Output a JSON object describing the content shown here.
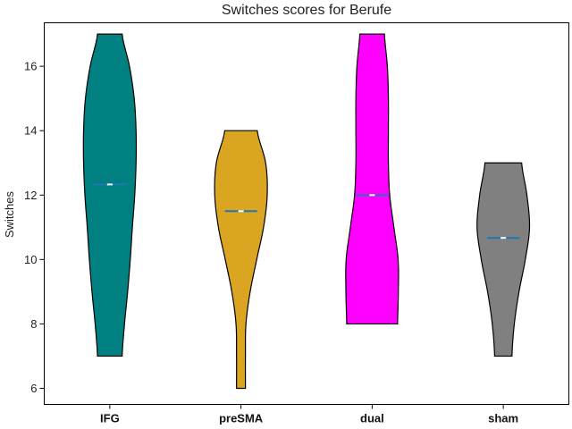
{
  "chart_data": {
    "type": "violin",
    "title": "Switches scores for Berufe",
    "xlabel": "",
    "ylabel": "Switches",
    "ylim": [
      5.5,
      17.35
    ],
    "yticks": [
      6,
      8,
      10,
      12,
      14,
      16
    ],
    "grid": false,
    "categories": [
      "IFG",
      "preSMA",
      "dual",
      "sham"
    ],
    "series": [
      {
        "category": "IFG",
        "color": "#008080",
        "min": 7,
        "max": 17,
        "mean": 12.33,
        "density": [
          [
            7,
            0.47
          ],
          [
            8,
            0.56
          ],
          [
            9,
            0.68
          ],
          [
            10,
            0.78
          ],
          [
            11,
            0.86
          ],
          [
            12,
            0.95
          ],
          [
            13,
            1.0
          ],
          [
            14,
            1.0
          ],
          [
            15,
            0.93
          ],
          [
            16,
            0.75
          ],
          [
            17,
            0.47
          ]
        ]
      },
      {
        "category": "preSMA",
        "color": "#DAA520",
        "min": 6,
        "max": 14,
        "mean": 11.5,
        "density": [
          [
            6,
            0.17
          ],
          [
            7,
            0.17
          ],
          [
            8,
            0.19
          ],
          [
            9,
            0.35
          ],
          [
            10,
            0.6
          ],
          [
            11,
            0.86
          ],
          [
            12,
            1.0
          ],
          [
            13,
            0.94
          ],
          [
            14,
            0.62
          ]
        ]
      },
      {
        "category": "dual",
        "color": "#FF00FF",
        "min": 8,
        "max": 17,
        "mean": 12.0,
        "density": [
          [
            8,
            0.97
          ],
          [
            9,
            1.0
          ],
          [
            10,
            0.99
          ],
          [
            11,
            0.83
          ],
          [
            12,
            0.67
          ],
          [
            13,
            0.62
          ],
          [
            14,
            0.62
          ],
          [
            15,
            0.62
          ],
          [
            16,
            0.58
          ],
          [
            17,
            0.47
          ]
        ]
      },
      {
        "category": "sham",
        "color": "#808080",
        "min": 7,
        "max": 13,
        "mean": 10.67,
        "density": [
          [
            7,
            0.33
          ],
          [
            8,
            0.42
          ],
          [
            9,
            0.6
          ],
          [
            10,
            0.84
          ],
          [
            11,
            1.0
          ],
          [
            12,
            0.9
          ],
          [
            13,
            0.7
          ]
        ]
      }
    ],
    "mean_marker_color": "#1f77b4"
  }
}
